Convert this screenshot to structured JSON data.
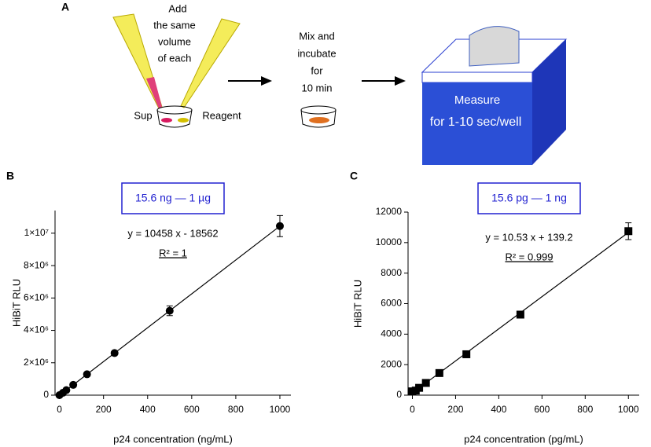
{
  "panel_a": {
    "label": "A",
    "step1": {
      "lines": [
        "Add",
        "the same",
        "volume",
        "of each"
      ],
      "left": "Sup",
      "right": "Reagent"
    },
    "step2": {
      "lines": [
        "Mix and",
        "incubate",
        "for",
        "10 min"
      ]
    },
    "step3": {
      "lines": [
        "Measure",
        "for 1-10 sec/well"
      ]
    }
  },
  "chart_data": [
    {
      "type": "scatter",
      "panel_label": "B",
      "marker": "circle",
      "color": "#000000",
      "range_label": "15.6 ng — 1 µg",
      "fit": {
        "label": "y = 10458 x - 18562",
        "slope": 10458,
        "intercept": -18562
      },
      "r2_label": "R² = 1",
      "x": [
        0,
        15.6,
        31.25,
        62.5,
        125,
        250,
        500,
        1000
      ],
      "values": [
        0,
        144000,
        308000,
        635000,
        1290000,
        2600000,
        5210000,
        10440000
      ],
      "errors": [
        0,
        20000,
        30000,
        40000,
        60000,
        80000,
        300000,
        650000
      ],
      "xlabel": "p24 concentration (ng/mL)",
      "ylabel": "HiBiT RLU",
      "xlim": [
        -20,
        1050
      ],
      "ylim": [
        0,
        11400000
      ],
      "xticks": [
        0,
        200,
        400,
        600,
        800,
        1000
      ],
      "yticks": [
        0,
        {
          "value": 2000000,
          "label": "2×10⁶"
        },
        {
          "value": 4000000,
          "label": "4×10⁶"
        },
        {
          "value": 6000000,
          "label": "6×10⁶"
        },
        {
          "value": 8000000,
          "label": "8×10⁶"
        },
        {
          "value": 10000000,
          "label": "1×10⁷"
        }
      ]
    },
    {
      "type": "scatter",
      "panel_label": "C",
      "marker": "square",
      "color": "#000000",
      "range_label": "15.6 pg — 1 ng",
      "fit": {
        "label": "y = 10.53 x + 139.2",
        "slope": 10.53,
        "intercept": 139.2
      },
      "r2_label": "R² = 0.999",
      "x": [
        0,
        15.6,
        31.25,
        62.5,
        125,
        250,
        500,
        1000
      ],
      "values": [
        250,
        300,
        480,
        800,
        1450,
        2680,
        5280,
        10750
      ],
      "errors": [
        20,
        20,
        30,
        40,
        60,
        80,
        200,
        550
      ],
      "xlabel": "p24 concentration (pg/mL)",
      "ylabel": "HiBiT RLU",
      "xlim": [
        -20,
        1050
      ],
      "ylim": [
        0,
        12000
      ],
      "xticks": [
        0,
        200,
        400,
        600,
        800,
        1000
      ],
      "yticks": [
        0,
        2000,
        4000,
        6000,
        8000,
        10000,
        12000
      ]
    }
  ]
}
